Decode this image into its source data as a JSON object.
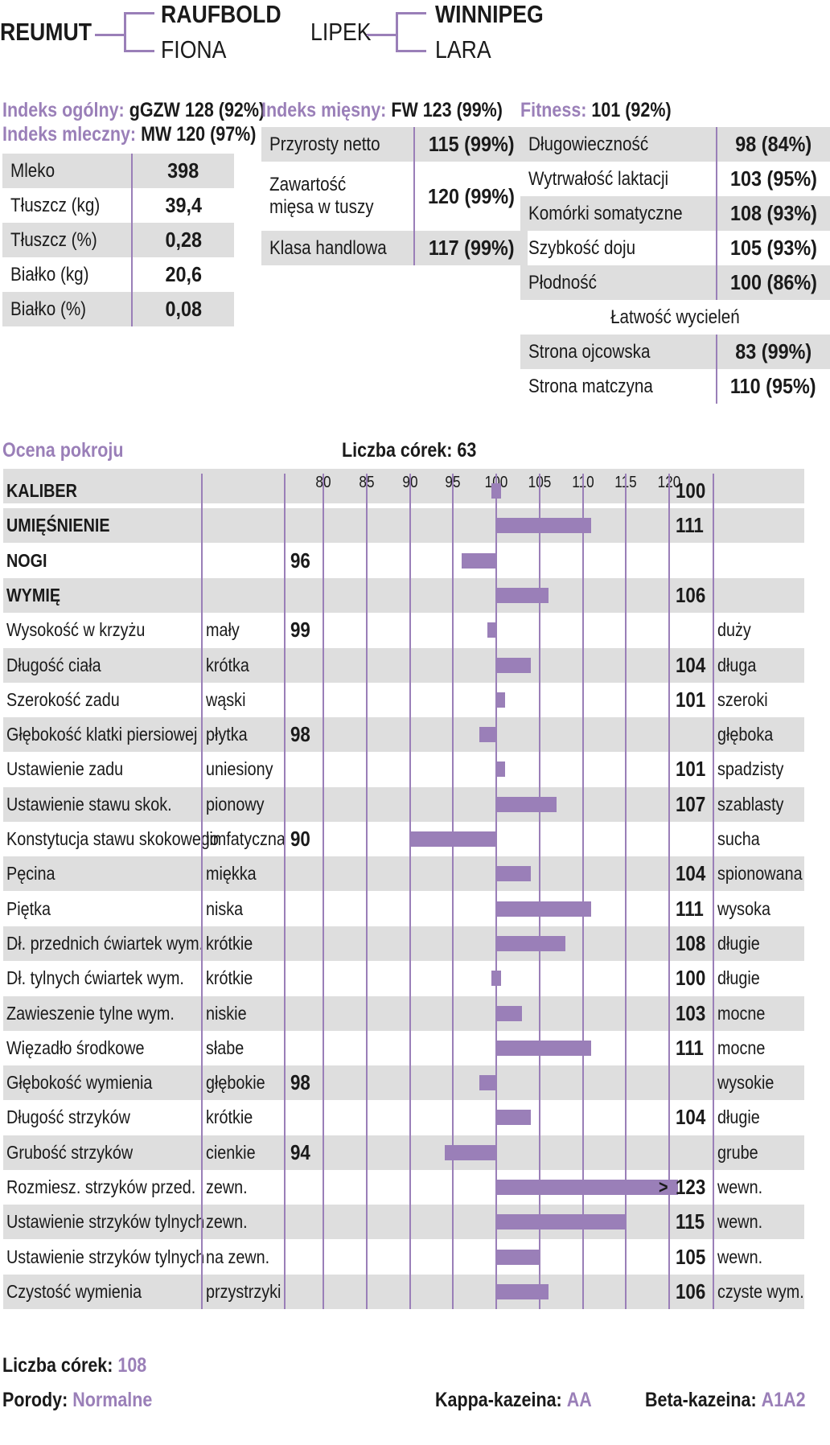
{
  "pedigree": {
    "bull": "REUMUT",
    "sire": "RAUFBOLD",
    "dam": "FIONA",
    "mgs": "LIPEK",
    "mgs_sire": "WINNIPEG",
    "mgs_dam": "LARA"
  },
  "indexes": {
    "overall_label": "Indeks ogólny:",
    "overall_value": "gGZW 128 (92%)",
    "milk_label": "Indeks mleczny:",
    "milk_value": "MW 120 (97%)",
    "meat_label": "Indeks mięsny:",
    "meat_value": "FW 123 (99%)",
    "fitness_label": "Fitness:",
    "fitness_value": "101 (92%)"
  },
  "milk_table": [
    {
      "label": "Mleko",
      "value": "398"
    },
    {
      "label": "Tłuszcz (kg)",
      "value": "39,4"
    },
    {
      "label": "Tłuszcz (%)",
      "value": "0,28"
    },
    {
      "label": "Białko (kg)",
      "value": "20,6"
    },
    {
      "label": "Białko (%)",
      "value": "0,08"
    }
  ],
  "meat_table": [
    {
      "label": "Przyrosty netto",
      "value": "115 (99%)"
    },
    {
      "label": "Zawartość mięsa w tuszy",
      "label_line1": "Zawartość",
      "label_line2": "mięsa w tuszy",
      "value": "120 (99%)"
    },
    {
      "label": "Klasa handlowa",
      "value": "117 (99%)"
    }
  ],
  "fitness_table": [
    {
      "label": "Długowieczność",
      "value": "98 (84%)"
    },
    {
      "label": "Wytrwałość laktacji",
      "value": "103 (95%)"
    },
    {
      "label": "Komórki somatyczne",
      "value": "108 (93%)"
    },
    {
      "label": "Szybkość doju",
      "value": "105 (93%)"
    },
    {
      "label": "Płodność",
      "value": "100 (86%)"
    }
  ],
  "calving": {
    "title": "Łatwość wycieleń",
    "rows": [
      {
        "label": "Strona ojcowska",
        "value": "83 (99%)"
      },
      {
        "label": "Strona matczyna",
        "value": "110 (95%)"
      }
    ]
  },
  "conformation": {
    "title": "Ocena pokroju",
    "daughters_label": "Liczba córek:",
    "daughters_value": "63",
    "tick_labels": [
      "80",
      "85",
      "90",
      "95",
      "100",
      "105",
      "110",
      "115",
      "120"
    ]
  },
  "chart_data": {
    "type": "bar",
    "xlim": [
      80,
      120
    ],
    "baseline": 100,
    "traits": [
      {
        "name": "KALIBER",
        "low": "",
        "high": "",
        "value": 100,
        "label": "100",
        "bold": true
      },
      {
        "name": "UMIĘŚNIENIE",
        "low": "",
        "high": "",
        "value": 111,
        "label": "111",
        "bold": true
      },
      {
        "name": "NOGI",
        "low": "",
        "high": "",
        "value": 96,
        "label": "96",
        "bold": true
      },
      {
        "name": "WYMIĘ",
        "low": "",
        "high": "",
        "value": 106,
        "label": "106",
        "bold": true
      },
      {
        "name": "Wysokość w krzyżu",
        "low": "mały",
        "high": "duży",
        "value": 99,
        "label": "99"
      },
      {
        "name": "Długość ciała",
        "low": "krótka",
        "high": "długa",
        "value": 104,
        "label": "104"
      },
      {
        "name": "Szerokość zadu",
        "low": "wąski",
        "high": "szeroki",
        "value": 101,
        "label": "101"
      },
      {
        "name": "Głębokość klatki piersiowej",
        "low": "płytka",
        "high": "głęboka",
        "value": 98,
        "label": "98"
      },
      {
        "name": "Ustawienie zadu",
        "low": "uniesiony",
        "high": "spadzisty",
        "value": 101,
        "label": "101"
      },
      {
        "name": "Ustawienie stawu skok.",
        "low": "pionowy",
        "high": "szablasty",
        "value": 107,
        "label": "107"
      },
      {
        "name": "Konstytucja stawu skokowego",
        "low": "limfatyczna",
        "high": "sucha",
        "value": 90,
        "label": "90"
      },
      {
        "name": "Pęcina",
        "low": "miękka",
        "high": "spionowana",
        "value": 104,
        "label": "104"
      },
      {
        "name": "Piętka",
        "low": "niska",
        "high": "wysoka",
        "value": 111,
        "label": "111"
      },
      {
        "name": "Dł. przednich ćwiartek wym.",
        "low": "krótkie",
        "high": "długie",
        "value": 108,
        "label": "108"
      },
      {
        "name": "Dł. tylnych ćwiartek wym.",
        "low": "krótkie",
        "high": "długie",
        "value": 100,
        "label": "100"
      },
      {
        "name": "Zawieszenie tylne wym.",
        "low": "niskie",
        "high": "mocne",
        "value": 103,
        "label": "103"
      },
      {
        "name": "Więzadło środkowe",
        "low": "słabe",
        "high": "mocne",
        "value": 111,
        "label": "111"
      },
      {
        "name": "Głębokość wymienia",
        "low": "głębokie",
        "high": "wysokie",
        "value": 98,
        "label": "98"
      },
      {
        "name": "Długość strzyków",
        "low": "krótkie",
        "high": "długie",
        "value": 104,
        "label": "104"
      },
      {
        "name": "Grubość strzyków",
        "low": "cienkie",
        "high": "grube",
        "value": 94,
        "label": "94"
      },
      {
        "name": "Rozmiesz. strzyków przed.",
        "low": "zewn.",
        "high": "wewn.",
        "value": 123,
        "label": "123",
        "overflow_marker": ">"
      },
      {
        "name": "Ustawienie strzyków tylnych",
        "low": "zewn.",
        "high": "wewn.",
        "value": 115,
        "label": "115"
      },
      {
        "name": "Ustawienie strzyków tylnych",
        "low": "na zewn.",
        "high": "wewn.",
        "value": 105,
        "label": "105"
      },
      {
        "name": "Czystość wymienia",
        "low": "przystrzyki",
        "high": "czyste wym.",
        "value": 106,
        "label": "106"
      }
    ]
  },
  "footer": {
    "daughters_label": "Liczba córek:",
    "daughters_value": "108",
    "births_label": "Porody:",
    "births_value": "Normalne",
    "kappa_label": "Kappa-kazeina:",
    "kappa_value": "AA",
    "beta_label": "Beta-kazeina:",
    "beta_value": "A1A2"
  },
  "colors": {
    "accent": "#9a7fb8",
    "shade": "#dedede"
  }
}
